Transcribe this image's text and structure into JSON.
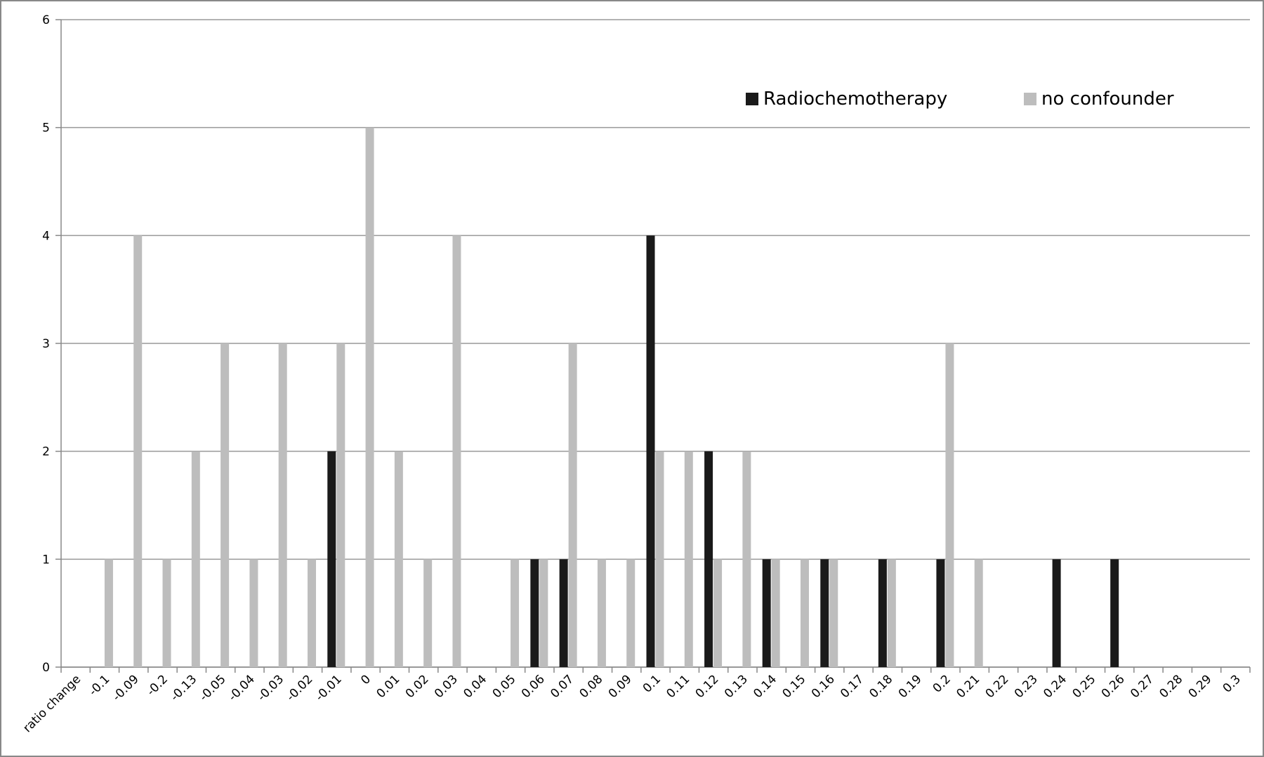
{
  "chart_data": {
    "type": "bar",
    "categories": [
      "ratio change",
      "-0.1",
      "-0.09",
      "-0.2",
      "-0.13",
      "-0.05",
      "-0.04",
      "-0.03",
      "-0.02",
      "-0.01",
      "0",
      "0.01",
      "0.02",
      "0.03",
      "0.04",
      "0.05",
      "0.06",
      "0.07",
      "0.08",
      "0.09",
      "0.1",
      "0.11",
      "0.12",
      "0.13",
      "0.14",
      "0.15",
      "0.16",
      "0.17",
      "0.18",
      "0.19",
      "0.2",
      "0.21",
      "0.22",
      "0.23",
      "0.24",
      "0.25",
      "0.26",
      "0.27",
      "0.28",
      "0.29",
      "0.3"
    ],
    "series": [
      {
        "name": "Radiochemotherapy",
        "color": "#1a1a1a",
        "values": [
          null,
          null,
          null,
          null,
          null,
          null,
          null,
          null,
          null,
          2,
          null,
          null,
          null,
          null,
          null,
          null,
          1,
          1,
          null,
          null,
          4,
          null,
          2,
          null,
          1,
          null,
          1,
          null,
          1,
          null,
          1,
          null,
          null,
          null,
          1,
          null,
          1,
          null,
          null,
          null,
          null
        ]
      },
      {
        "name": "no confounder",
        "color": "#bdbdbd",
        "values": [
          null,
          1,
          4,
          1,
          2,
          3,
          1,
          3,
          1,
          3,
          5,
          2,
          1,
          4,
          null,
          1,
          1,
          3,
          1,
          1,
          2,
          2,
          1,
          2,
          1,
          1,
          1,
          null,
          1,
          null,
          3,
          1,
          null,
          null,
          null,
          null,
          null,
          null,
          null,
          null,
          null
        ]
      }
    ],
    "ylim": [
      0,
      6
    ],
    "yticks": [
      0,
      1,
      2,
      3,
      4,
      5,
      6
    ],
    "grid": true
  }
}
